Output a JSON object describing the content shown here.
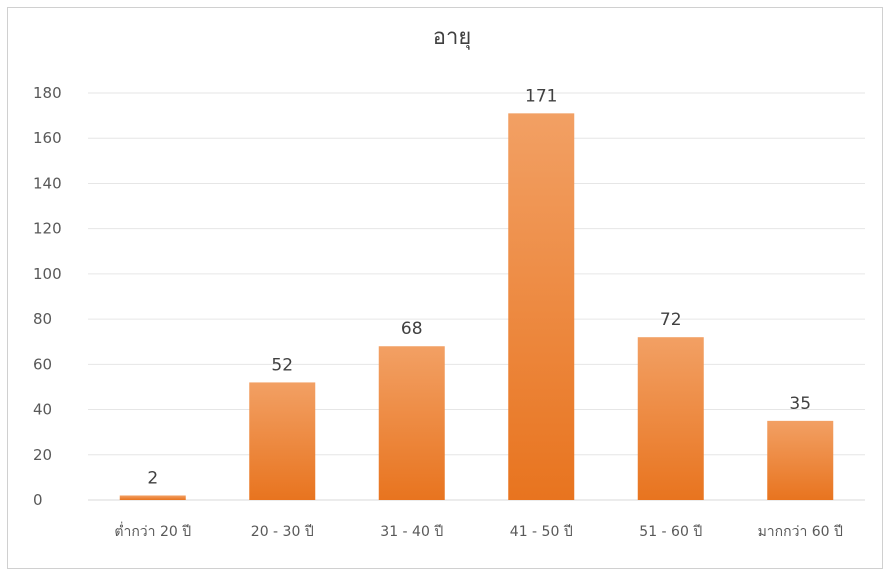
{
  "chart_data": {
    "type": "bar",
    "title": "อายุ",
    "categories": [
      "ต่ำกว่า 20 ปี",
      "20 - 30 ปี",
      "31 - 40 ปี",
      "41 - 50 ปี",
      "51 - 60 ปี",
      "มากกว่า 60 ปี"
    ],
    "values": [
      2,
      52,
      68,
      171,
      72,
      35
    ],
    "ylim": [
      0,
      180
    ],
    "yticks": [
      0,
      20,
      40,
      60,
      80,
      100,
      120,
      140,
      160,
      180
    ],
    "grid": true,
    "legend": "none",
    "bar_color_top": "#f2a064",
    "bar_color_bottom": "#e8741f"
  }
}
